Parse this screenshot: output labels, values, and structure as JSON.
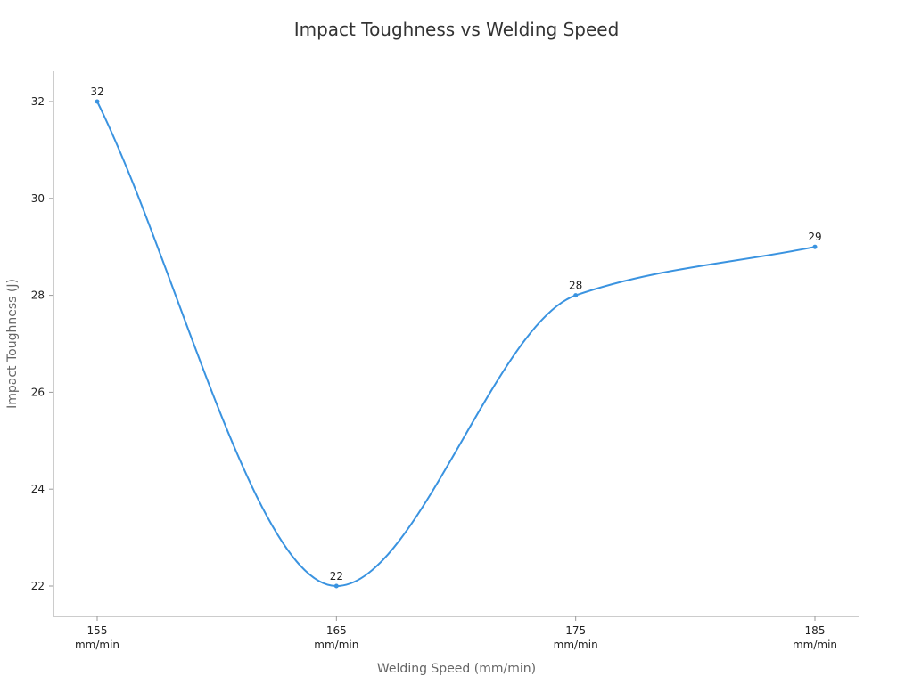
{
  "chart_data": {
    "type": "line",
    "title": "Impact Toughness vs Welding Speed",
    "x_label": "Welding Speed (mm/min)",
    "y_label": "Impact Toughness (J)",
    "categories": [
      "155 mm/min",
      "165 mm/min",
      "175 mm/min",
      "185 mm/min"
    ],
    "values": [
      32,
      22,
      28,
      29
    ],
    "color": "#3a93e0",
    "ylim": [
      21.375,
      32.625
    ],
    "yticks": [
      22,
      24,
      26,
      28,
      30,
      32
    ],
    "grid": false,
    "smooth": true
  }
}
